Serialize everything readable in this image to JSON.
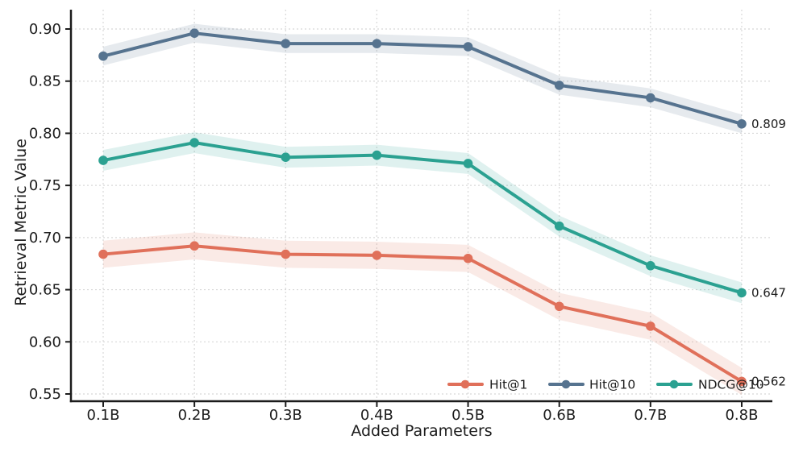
{
  "chart_data": {
    "type": "line",
    "title": "",
    "xlabel": "Added Parameters",
    "ylabel": "Retrieval Metric Value",
    "categories": [
      "0.1B",
      "0.2B",
      "0.3B",
      "0.4B",
      "0.5B",
      "0.6B",
      "0.7B",
      "0.8B"
    ],
    "series": [
      {
        "name": "Hit@1",
        "color": "#E0705A",
        "band_delta": 0.013,
        "values": [
          0.684,
          0.692,
          0.684,
          0.683,
          0.68,
          0.634,
          0.615,
          0.562
        ],
        "end_label": "0.562"
      },
      {
        "name": "Hit@10",
        "color": "#56738F",
        "band_delta": 0.009,
        "values": [
          0.874,
          0.896,
          0.886,
          0.886,
          0.883,
          0.846,
          0.834,
          0.809
        ],
        "end_label": "0.809"
      },
      {
        "name": "NDCG@10",
        "color": "#2BA191",
        "band_delta": 0.01,
        "values": [
          0.774,
          0.791,
          0.777,
          0.779,
          0.771,
          0.711,
          0.673,
          0.647
        ],
        "end_label": "0.647"
      }
    ],
    "y_ticks": [
      0.55,
      0.6,
      0.65,
      0.7,
      0.75,
      0.8,
      0.85,
      0.9
    ],
    "y_tick_labels": [
      "0.55",
      "0.60",
      "0.65",
      "0.70",
      "0.75",
      "0.80",
      "0.85",
      "0.90"
    ],
    "ylim": [
      0.543,
      0.919
    ],
    "grid": true,
    "grid_style": "dashed",
    "legend_position": "lower right",
    "legend_order": [
      "Hit@1",
      "Hit@10",
      "NDCG@10"
    ],
    "band_opacity": 0.15,
    "grid_color": "#D8D8D8",
    "axis_color": "#1C1C1C"
  }
}
